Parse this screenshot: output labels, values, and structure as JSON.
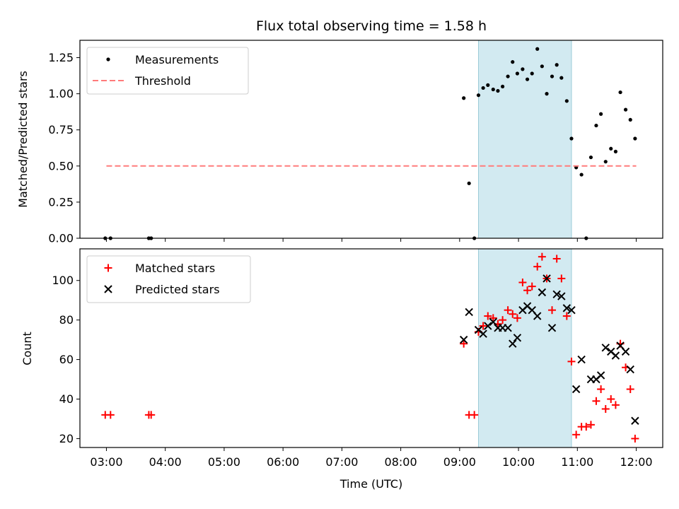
{
  "chart_data": [
    {
      "type": "scatter",
      "title": "Flux total observing time = 1.58 h",
      "xlabel": "",
      "ylabel": "Matched/Predicted stars",
      "x_tick_labels": [
        "03:00",
        "04:00",
        "05:00",
        "06:00",
        "07:00",
        "08:00",
        "09:00",
        "10:00",
        "11:00",
        "12:00"
      ],
      "x_tick_hours": [
        3,
        4,
        5,
        6,
        7,
        8,
        9,
        10,
        11,
        12
      ],
      "xlim_hours": [
        2.55,
        12.45
      ],
      "ylim": [
        0,
        1.37
      ],
      "y_ticks": [
        0,
        0.25,
        0.5,
        0.75,
        1.0,
        1.25
      ],
      "y_tick_labels": [
        "0.00",
        "0.25",
        "0.50",
        "0.75",
        "1.00",
        "1.25"
      ],
      "legend_position": "top-left",
      "highlight_span_hours": [
        9.32,
        10.9
      ],
      "highlight_color": "#add8e6",
      "series": [
        {
          "name": "Measurements",
          "style": "dot",
          "color": "#000000",
          "x_hours": [
            2.98,
            3.07,
            3.72,
            3.76,
            9.07,
            9.16,
            9.25,
            9.32,
            9.4,
            9.48,
            9.57,
            9.65,
            9.73,
            9.82,
            9.9,
            9.98,
            10.07,
            10.15,
            10.23,
            10.32,
            10.4,
            10.48,
            10.57,
            10.65,
            10.73,
            10.82,
            10.9,
            10.98,
            11.07,
            11.15,
            11.23,
            11.32,
            11.4,
            11.48,
            11.57,
            11.65,
            11.73,
            11.82,
            11.9,
            11.98
          ],
          "y": [
            0,
            0,
            0,
            0,
            0.97,
            0.38,
            0,
            0.99,
            1.04,
            1.06,
            1.03,
            1.02,
            1.05,
            1.12,
            1.22,
            1.14,
            1.17,
            1.1,
            1.14,
            1.31,
            1.19,
            1.0,
            1.12,
            1.2,
            1.11,
            0.95,
            0.69,
            0.49,
            0.44,
            0,
            0.56,
            0.78,
            0.86,
            0.53,
            0.62,
            0.6,
            1.01,
            0.89,
            0.82,
            0.69
          ]
        },
        {
          "name": "Threshold",
          "style": "dashed-line",
          "color": "#ff7b7b",
          "x_hours": [
            3.0,
            12.0
          ],
          "y": [
            0.5,
            0.5
          ]
        }
      ]
    },
    {
      "type": "scatter",
      "title": "",
      "xlabel": "Time (UTC)",
      "ylabel": "Count",
      "x_tick_labels": [
        "03:00",
        "04:00",
        "05:00",
        "06:00",
        "07:00",
        "08:00",
        "09:00",
        "10:00",
        "11:00",
        "12:00"
      ],
      "x_tick_hours": [
        3,
        4,
        5,
        6,
        7,
        8,
        9,
        10,
        11,
        12
      ],
      "xlim_hours": [
        2.55,
        12.45
      ],
      "ylim": [
        15.5,
        116
      ],
      "y_ticks": [
        20,
        40,
        60,
        80,
        100
      ],
      "y_tick_labels": [
        "20",
        "40",
        "60",
        "80",
        "100"
      ],
      "legend_position": "top-left",
      "highlight_span_hours": [
        9.32,
        10.9
      ],
      "highlight_color": "#add8e6",
      "series": [
        {
          "name": "Matched stars",
          "style": "plus",
          "color": "#ff0000",
          "x_hours": [
            2.98,
            3.07,
            3.72,
            3.76,
            9.07,
            9.16,
            9.25,
            9.32,
            9.4,
            9.48,
            9.57,
            9.65,
            9.73,
            9.82,
            9.9,
            9.98,
            10.07,
            10.15,
            10.23,
            10.32,
            10.4,
            10.48,
            10.57,
            10.65,
            10.73,
            10.82,
            10.9,
            10.98,
            11.07,
            11.15,
            11.23,
            11.32,
            11.4,
            11.48,
            11.57,
            11.65,
            11.73,
            11.82,
            11.9,
            11.98
          ],
          "y": [
            32,
            32,
            32,
            32,
            68,
            32,
            32,
            74,
            77,
            82,
            81,
            78,
            80,
            85,
            83,
            81,
            99,
            95,
            97,
            107,
            112,
            101,
            85,
            111,
            101,
            82,
            59,
            22,
            26,
            26,
            27,
            39,
            45,
            35,
            40,
            37,
            68,
            56,
            45,
            20
          ]
        },
        {
          "name": "Predicted stars",
          "style": "x",
          "color": "#000000",
          "x_hours": [
            9.07,
            9.16,
            9.32,
            9.4,
            9.48,
            9.57,
            9.65,
            9.73,
            9.82,
            9.9,
            9.98,
            10.07,
            10.15,
            10.23,
            10.32,
            10.4,
            10.48,
            10.57,
            10.65,
            10.73,
            10.82,
            10.9,
            10.98,
            11.07,
            11.23,
            11.32,
            11.4,
            11.48,
            11.57,
            11.65,
            11.73,
            11.82,
            11.9,
            11.98
          ],
          "y": [
            70,
            84,
            75,
            73,
            77,
            79,
            76,
            76,
            76,
            68,
            71,
            85,
            87,
            85,
            82,
            94,
            101,
            76,
            93,
            92,
            86,
            85,
            45,
            60,
            50,
            50,
            52,
            66,
            64,
            62,
            67,
            64,
            55,
            29
          ]
        }
      ]
    }
  ]
}
